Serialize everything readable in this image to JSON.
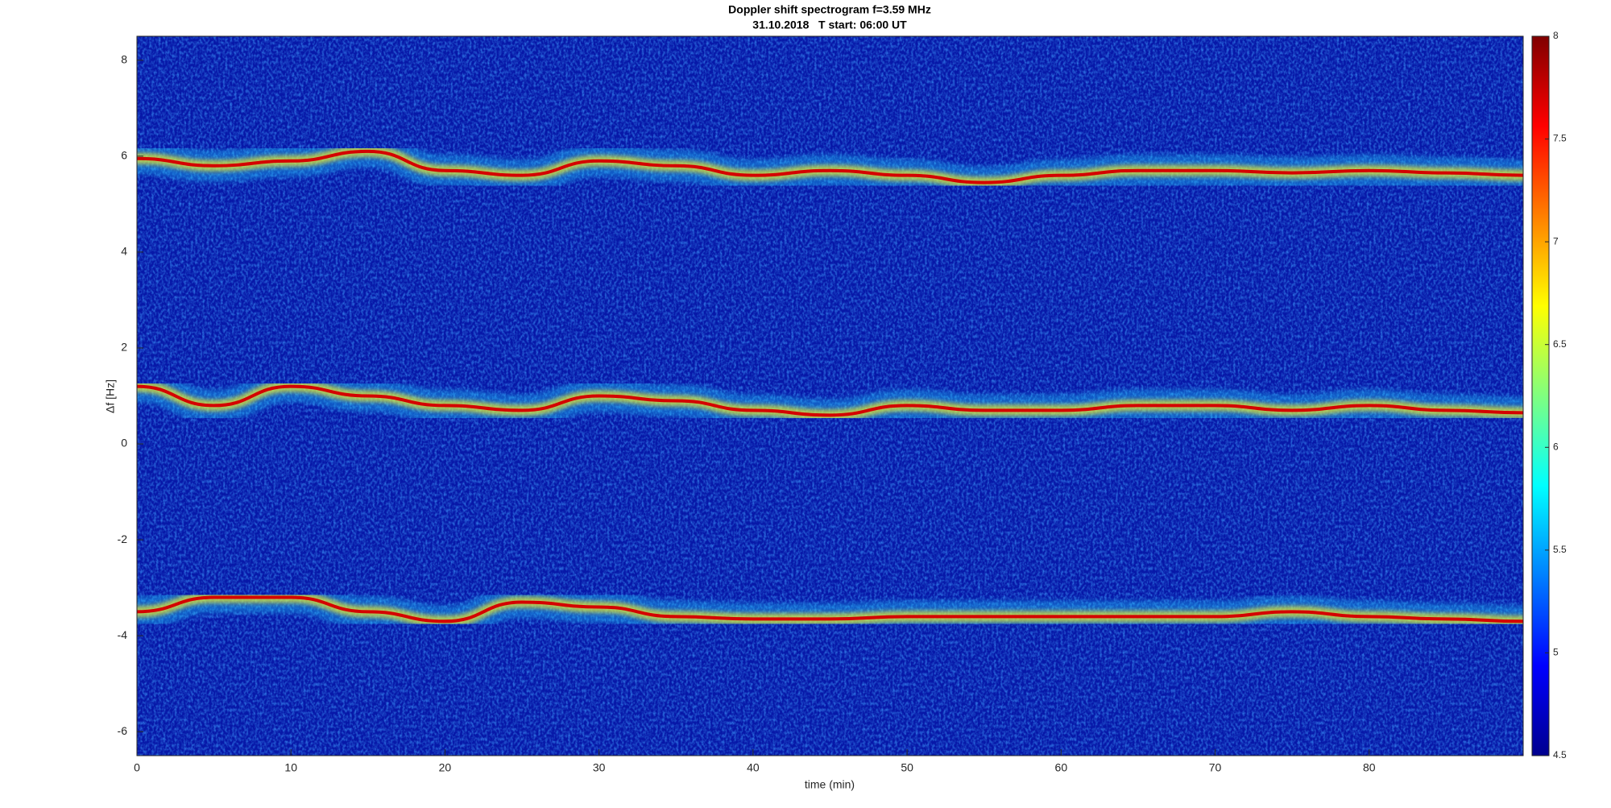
{
  "chart_data": {
    "type": "spectrogram",
    "title": "Doppler shift spectrogram f=3.59 MHz",
    "subtitle": "31.10.2018   T start: 06:00 UT",
    "x_label": "time (min)",
    "y_label": "Δf [Hz]",
    "x": [
      0,
      5,
      10,
      15,
      20,
      25,
      30,
      35,
      40,
      45,
      50,
      55,
      60,
      65,
      70,
      75,
      80,
      85,
      90
    ],
    "series": [
      {
        "color": "#d40000",
        "values": [
          5.95,
          5.8,
          5.9,
          6.1,
          5.7,
          5.6,
          5.9,
          5.8,
          5.6,
          5.7,
          5.6,
          5.45,
          5.6,
          5.7,
          5.7,
          5.65,
          5.7,
          5.65,
          5.6
        ]
      },
      {
        "color": "#d40000",
        "values": [
          1.2,
          0.8,
          1.2,
          1.0,
          0.8,
          0.7,
          1.0,
          0.9,
          0.7,
          0.6,
          0.8,
          0.7,
          0.7,
          0.8,
          0.8,
          0.7,
          0.8,
          0.7,
          0.65
        ]
      },
      {
        "color": "#d40000",
        "values": [
          -3.5,
          -3.2,
          -3.2,
          -3.5,
          -3.7,
          -3.3,
          -3.4,
          -3.6,
          -3.65,
          -3.65,
          -3.6,
          -3.6,
          -3.6,
          -3.6,
          -3.6,
          -3.5,
          -3.6,
          -3.65,
          -3.7
        ]
      }
    ],
    "xlim": [
      0,
      90
    ],
    "xticks": [
      0,
      10,
      20,
      30,
      40,
      50,
      60,
      70,
      80
    ],
    "ylim": [
      -6.5,
      8.5
    ],
    "yticks": [
      -6,
      -4,
      -2,
      0,
      2,
      4,
      6,
      8
    ],
    "colormap": "jet",
    "clim": [
      4.5,
      8
    ],
    "cticks": [
      4.5,
      5,
      5.5,
      6,
      6.5,
      7,
      7.5,
      8
    ]
  }
}
